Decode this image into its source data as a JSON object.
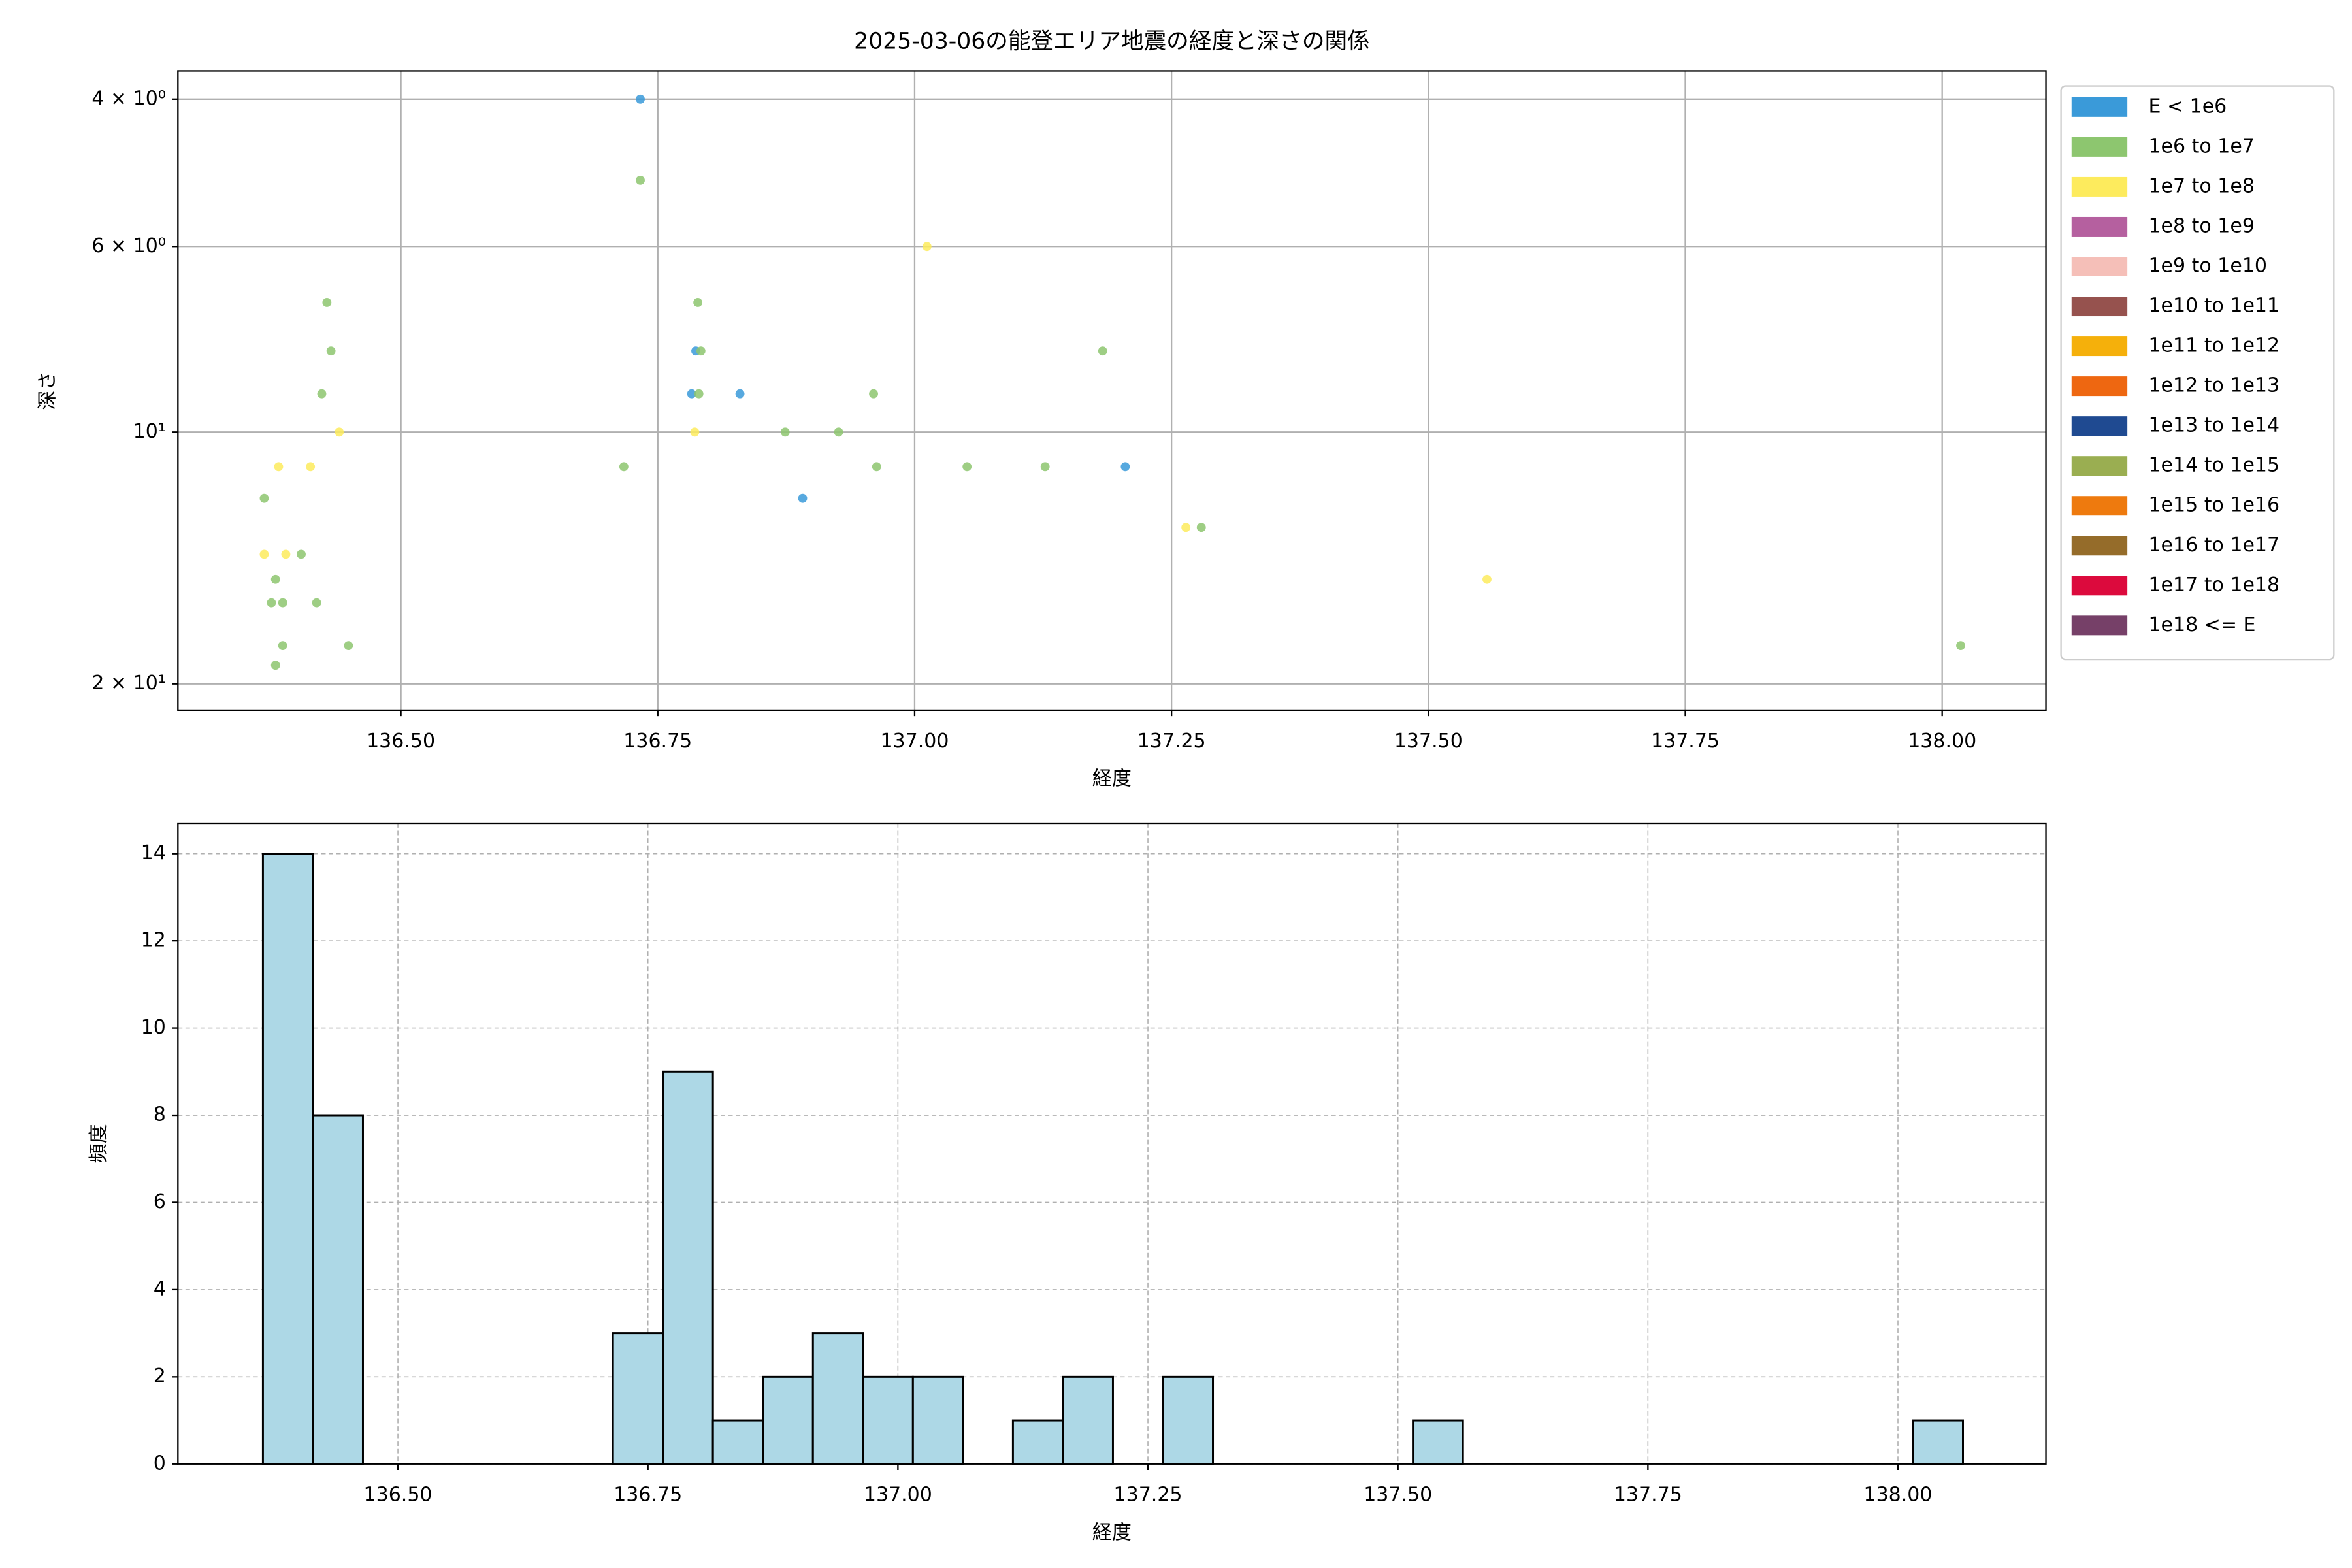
{
  "chart_data": [
    {
      "type": "scatter",
      "title": "2025-03-06の能登エリア地震の経度と深さの関係",
      "x_label": "経度",
      "y_label": "深さ",
      "xlim": [
        136.283,
        138.101
      ],
      "ylim": [
        21.5,
        3.7
      ],
      "yscale": "log",
      "grid": true,
      "grid_style": "solid",
      "legend": "right",
      "xticks": [
        {
          "value": 136.5,
          "label": "136.50"
        },
        {
          "value": 136.75,
          "label": "136.75"
        },
        {
          "value": 137.0,
          "label": "137.00"
        },
        {
          "value": 137.25,
          "label": "137.25"
        },
        {
          "value": 137.5,
          "label": "137.50"
        },
        {
          "value": 137.75,
          "label": "137.75"
        },
        {
          "value": 138.0,
          "label": "138.00"
        }
      ],
      "yticks": [
        {
          "value": 4,
          "label": "4 × 10⁰"
        },
        {
          "value": 6,
          "label": "6 × 10⁰"
        },
        {
          "value": 10,
          "label": "10¹"
        },
        {
          "value": 20,
          "label": "2 × 10¹"
        }
      ],
      "series": [
        {
          "name": "E < 1e6",
          "color": "#3a9ad9",
          "x": [
            136.733,
            136.783,
            136.83,
            136.891,
            137.205,
            136.787
          ],
          "values": [
            4,
            9,
            9,
            12,
            11,
            8
          ]
        },
        {
          "name": "1e6 to 1e7",
          "color": "#8dc66f",
          "x": [
            136.733,
            136.428,
            136.432,
            136.423,
            136.367,
            136.403,
            136.378,
            136.374,
            136.385,
            136.418,
            136.385,
            136.378,
            136.449,
            136.789,
            136.792,
            136.79,
            136.717,
            136.874,
            136.926,
            136.96,
            136.963,
            137.051,
            137.127,
            137.183,
            137.279,
            138.018
          ],
          "values": [
            5,
            7,
            8,
            9,
            12,
            14,
            15,
            16,
            16,
            16,
            18,
            19,
            18,
            7,
            8,
            9,
            11,
            10,
            10,
            9,
            11,
            11,
            11,
            8,
            13,
            18
          ]
        },
        {
          "name": "1e7 to 1e8",
          "color": "#fdeb5d",
          "x": [
            137.012,
            136.44,
            136.381,
            136.412,
            136.367,
            136.388,
            136.786,
            137.264,
            137.557
          ],
          "values": [
            6,
            10,
            11,
            11,
            14,
            14,
            10,
            13,
            15
          ]
        },
        {
          "name": "1e8 to 1e9",
          "color": "#b5609f",
          "x": [],
          "values": []
        },
        {
          "name": "1e9 to 1e10",
          "color": "#f5bfb8",
          "x": [],
          "values": []
        },
        {
          "name": "1e10 to 1e11",
          "color": "#96524e",
          "x": [],
          "values": []
        },
        {
          "name": "1e11 to 1e12",
          "color": "#f5b00b",
          "x": [],
          "values": []
        },
        {
          "name": "1e12 to 1e13",
          "color": "#ee6711",
          "x": [],
          "values": []
        },
        {
          "name": "1e13 to 1e14",
          "color": "#1f4a91",
          "x": [],
          "values": []
        },
        {
          "name": "1e14 to 1e15",
          "color": "#9aae51",
          "x": [],
          "values": []
        },
        {
          "name": "1e15 to 1e16",
          "color": "#ee7a0e",
          "x": [],
          "values": []
        },
        {
          "name": "1e16 to 1e17",
          "color": "#956c2a",
          "x": [],
          "values": []
        },
        {
          "name": "1e17 to 1e18",
          "color": "#dc0a3d",
          "x": [],
          "values": []
        },
        {
          "name": "1e18 <= E",
          "color": "#764068",
          "x": [],
          "values": []
        }
      ]
    },
    {
      "type": "histogram",
      "x_label": "経度",
      "y_label": "頻度",
      "color": "#add8e6",
      "xlim": [
        136.28,
        138.148
      ],
      "ylim": [
        0,
        14.7
      ],
      "grid": true,
      "grid_style": "dashed",
      "xticks": [
        {
          "value": 136.5,
          "label": "136.50"
        },
        {
          "value": 136.75,
          "label": "136.75"
        },
        {
          "value": 137.0,
          "label": "137.00"
        },
        {
          "value": 137.25,
          "label": "137.25"
        },
        {
          "value": 137.5,
          "label": "137.50"
        },
        {
          "value": 137.75,
          "label": "137.75"
        },
        {
          "value": 138.0,
          "label": "138.00"
        }
      ],
      "yticks": [
        0,
        2,
        4,
        6,
        8,
        10,
        12,
        14
      ],
      "bins": [
        136.365,
        136.415,
        136.465,
        136.515,
        136.565,
        136.615,
        136.665,
        136.715,
        136.765,
        136.815,
        136.865,
        136.915,
        136.965,
        137.015,
        137.065,
        137.115,
        137.165,
        137.215,
        137.265,
        137.315,
        137.365,
        137.415,
        137.465,
        137.515,
        137.565,
        137.615,
        137.665,
        137.715,
        137.765,
        137.815,
        137.865,
        137.915,
        137.965,
        138.015,
        138.065
      ],
      "values": [
        14,
        8,
        0,
        0,
        0,
        0,
        0,
        3,
        9,
        1,
        2,
        3,
        2,
        2,
        0,
        1,
        2,
        0,
        2,
        0,
        0,
        0,
        0,
        1,
        0,
        0,
        0,
        0,
        0,
        0,
        0,
        0,
        0,
        1
      ]
    }
  ]
}
